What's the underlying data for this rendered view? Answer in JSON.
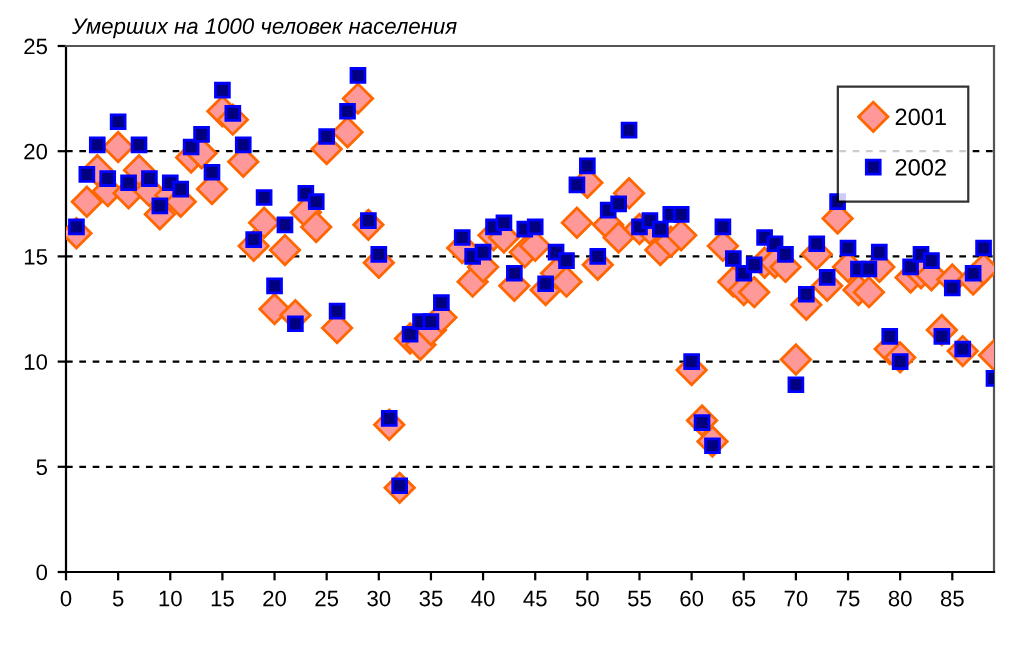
{
  "chart_data": {
    "type": "scatter",
    "title": "Умерших на 1000 человек населения",
    "x": [
      1,
      2,
      3,
      4,
      5,
      6,
      7,
      8,
      9,
      10,
      11,
      12,
      13,
      14,
      15,
      16,
      17,
      18,
      19,
      20,
      21,
      22,
      23,
      24,
      25,
      26,
      27,
      28,
      29,
      30,
      31,
      32,
      33,
      34,
      35,
      36,
      37,
      38,
      39,
      40,
      41,
      42,
      43,
      44,
      45,
      46,
      47,
      48,
      49,
      50,
      51,
      52,
      53,
      54,
      55,
      56,
      57,
      58,
      59,
      60,
      61,
      62,
      63,
      64,
      65,
      66,
      67,
      68,
      69,
      70,
      71,
      72,
      73,
      74,
      75,
      76,
      77,
      78,
      79,
      80,
      81,
      82,
      83,
      84,
      85,
      86,
      87,
      88,
      89
    ],
    "series": [
      {
        "name": "2001",
        "color": "#ff9999",
        "marker": "diamond",
        "values": [
          16.1,
          17.6,
          19.1,
          18.1,
          20.2,
          18.0,
          19.1,
          18.1,
          17.0,
          17.9,
          17.6,
          19.7,
          19.9,
          18.2,
          21.9,
          21.5,
          19.5,
          15.5,
          16.6,
          12.5,
          15.3,
          12.2,
          17.1,
          16.4,
          20.1,
          11.6,
          20.9,
          22.5,
          16.5,
          14.7,
          7.0,
          4.0,
          11.1,
          10.8,
          11.5,
          12.1,
          null,
          15.4,
          13.8,
          14.5,
          16.0,
          15.9,
          13.6,
          15.2,
          15.5,
          13.4,
          14.2,
          13.8,
          16.6,
          18.5,
          14.6,
          16.5,
          15.9,
          18.0,
          16.3,
          16.3,
          15.3,
          15.7,
          16.0,
          9.6,
          7.2,
          6.2,
          15.5,
          13.8,
          13.4,
          13.3,
          14.7,
          14.7,
          14.5,
          10.1,
          12.7,
          15.1,
          13.6,
          16.8,
          14.5,
          13.4,
          13.3,
          14.5,
          10.6,
          10.2,
          14.0,
          14.2,
          14.1,
          11.5,
          13.9,
          10.5,
          13.9,
          14.4,
          10.3
        ]
      },
      {
        "name": "2002",
        "color": "#000080",
        "marker": "square",
        "values": [
          16.4,
          18.9,
          20.3,
          18.7,
          21.4,
          18.5,
          20.3,
          18.7,
          17.4,
          18.5,
          18.2,
          20.2,
          20.8,
          19.0,
          22.9,
          21.8,
          20.3,
          15.8,
          17.8,
          13.6,
          16.5,
          11.8,
          18.0,
          17.6,
          20.7,
          12.4,
          21.9,
          23.6,
          16.7,
          15.1,
          7.3,
          4.1,
          11.3,
          11.9,
          11.9,
          12.8,
          null,
          15.9,
          15.0,
          15.2,
          16.4,
          16.6,
          14.2,
          16.3,
          16.4,
          13.7,
          15.2,
          14.8,
          18.4,
          19.3,
          15.0,
          17.2,
          17.5,
          21.0,
          16.4,
          16.7,
          16.3,
          17.0,
          17.0,
          10.0,
          7.1,
          6.0,
          16.4,
          14.9,
          14.2,
          14.6,
          15.9,
          15.6,
          15.1,
          8.9,
          13.2,
          15.6,
          14.0,
          17.6,
          15.4,
          14.4,
          14.4,
          15.2,
          11.2,
          10.0,
          14.5,
          15.1,
          14.8,
          11.2,
          13.5,
          10.6,
          14.2,
          15.4,
          9.2
        ]
      }
    ],
    "xlim": [
      0,
      89
    ],
    "xticks": [
      0,
      5,
      10,
      15,
      20,
      25,
      30,
      35,
      40,
      45,
      50,
      55,
      60,
      65,
      70,
      75,
      80,
      85
    ],
    "ylim": [
      0,
      25
    ],
    "yticks": [
      0,
      5,
      10,
      15,
      20,
      25
    ],
    "grid": "y",
    "legend": "top right"
  }
}
